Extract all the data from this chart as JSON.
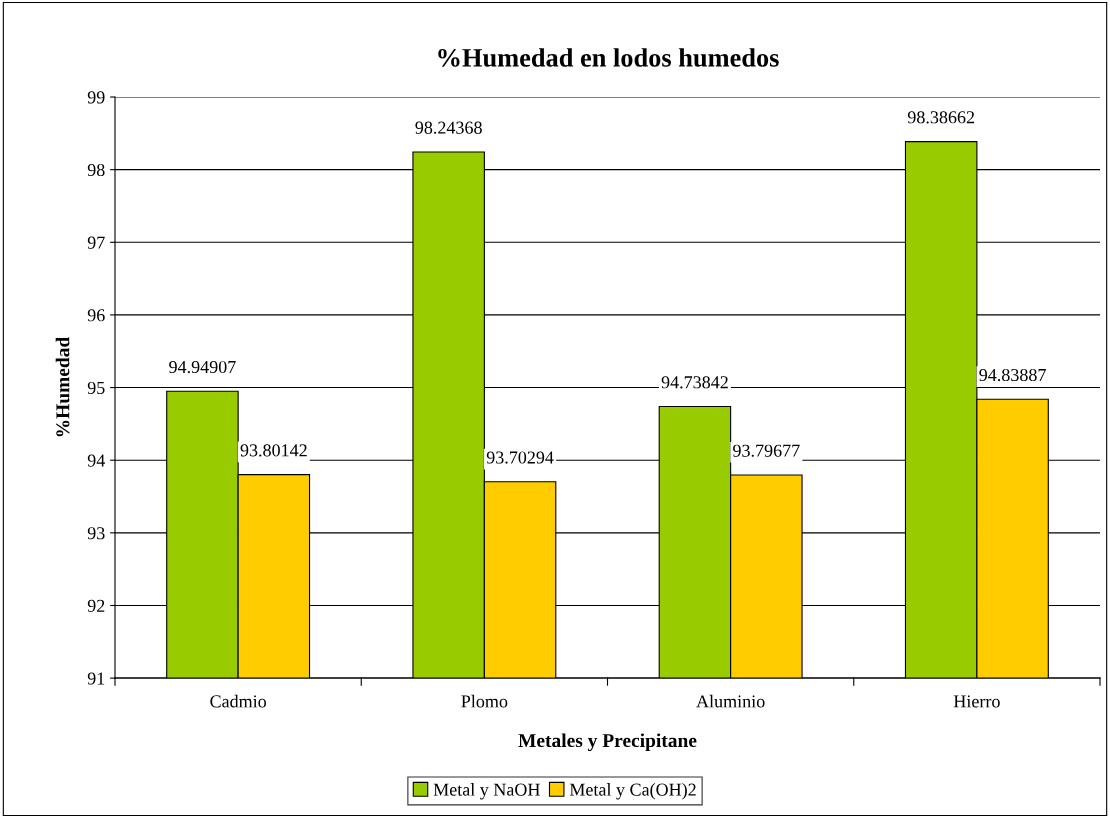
{
  "chart_data": {
    "type": "bar",
    "title": "%Humedad en lodos humedos",
    "xlabel": "Metales y Precipitane",
    "ylabel": "%Humedad",
    "categories": [
      "Cadmio",
      "Plomo",
      "Aluminio",
      "Hierro"
    ],
    "series": [
      {
        "name": "Metal y NaOH",
        "color": "#99cc00",
        "values": [
          94.94907,
          98.24368,
          94.73842,
          98.38662
        ]
      },
      {
        "name": "Metal y Ca(OH)2",
        "color": "#ffcc00",
        "values": [
          93.80142,
          93.70294,
          93.79677,
          94.83887
        ]
      }
    ],
    "ylim": [
      91,
      99
    ],
    "yticks": [
      91,
      92,
      93,
      94,
      95,
      96,
      97,
      98,
      99
    ],
    "grid": "y",
    "legend": "bottom",
    "data_labels": true
  }
}
